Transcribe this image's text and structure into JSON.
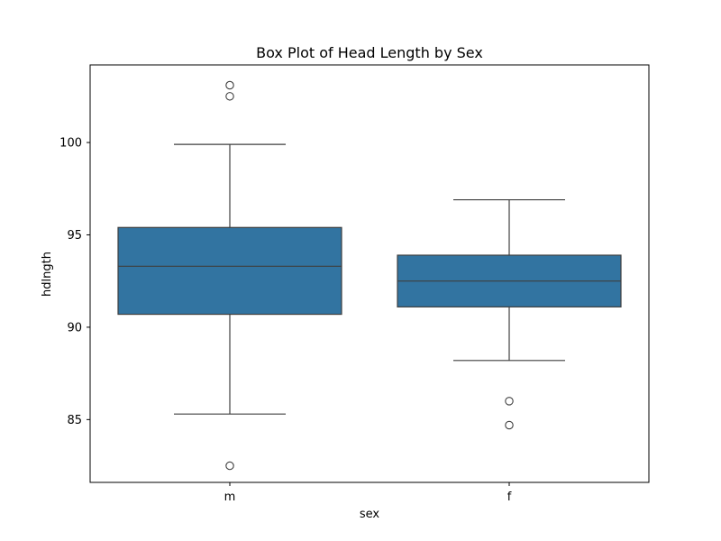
{
  "chart_data": {
    "type": "box",
    "title": "Box Plot of Head Length by Sex",
    "xlabel": "sex",
    "ylabel": "hdlngth",
    "categories": [
      "m",
      "f"
    ],
    "ylim": [
      81.6,
      104.2
    ],
    "yticks": [
      85,
      90,
      95,
      100
    ],
    "grid": false,
    "box_color": "#3274a1",
    "edge_color": "#3f3f3f",
    "boxes": [
      {
        "category": "m",
        "whisker_low": 85.3,
        "q1": 90.7,
        "median": 93.3,
        "q3": 95.4,
        "whisker_high": 99.9,
        "outliers": [
          82.5,
          102.5,
          103.1
        ]
      },
      {
        "category": "f",
        "whisker_low": 88.2,
        "q1": 91.1,
        "median": 92.5,
        "q3": 93.9,
        "whisker_high": 96.9,
        "outliers": [
          84.7,
          86.0
        ]
      }
    ]
  }
}
